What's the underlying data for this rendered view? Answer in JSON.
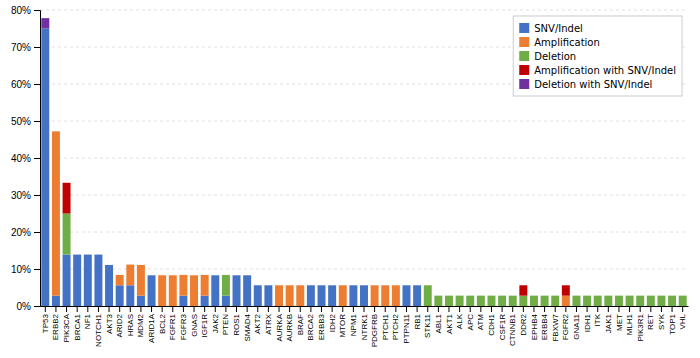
{
  "chart_data": {
    "type": "bar",
    "stacked": true,
    "categories": [
      "TP53",
      "ERBB2",
      "PIK3CA",
      "BRCA1",
      "NF1",
      "NOTCH1",
      "AKT3",
      "ARID2",
      "HRAS",
      "MDM2",
      "ARID1A",
      "BCL2",
      "FGFR1",
      "FGFR3",
      "GNAS",
      "IGF1R",
      "JAK2",
      "PTEN",
      "ROS1",
      "SMAD4",
      "AKT2",
      "ATRX",
      "AURKA",
      "AURKB",
      "BRAF",
      "BRCA2",
      "ERBB3",
      "IDH2",
      "MTOR",
      "NPM1",
      "NTRK1",
      "PDGFRB",
      "PTCH1",
      "PTCH2",
      "PTPN11",
      "RB1",
      "STK11",
      "ABL1",
      "AKT1",
      "ALK",
      "APC",
      "ATM",
      "CDH1",
      "CSF1R",
      "CTNNB1",
      "DDR2",
      "EPHB4",
      "ERBB4",
      "FBXW7",
      "FGFR2",
      "GNA11",
      "IDH1",
      "ITK",
      "JAK1",
      "MET",
      "MLH1",
      "PIK3R1",
      "RET",
      "SYK",
      "TOP1",
      "VHL"
    ],
    "series": [
      {
        "name": "SNV/Indel",
        "color": "#4472C4",
        "values": [
          75,
          2.8,
          13.9,
          13.9,
          13.9,
          13.9,
          11.1,
          5.6,
          5.6,
          2.8,
          8.3,
          0,
          0,
          2.8,
          0,
          2.8,
          8.3,
          2.8,
          8.3,
          8.3,
          5.6,
          5.6,
          0,
          0,
          0,
          5.6,
          5.6,
          5.6,
          0,
          5.6,
          5.6,
          0,
          0,
          0,
          5.6,
          5.6,
          0,
          0,
          0,
          0,
          0,
          0,
          0,
          0,
          0,
          0,
          0,
          0,
          0,
          0,
          0,
          0,
          0,
          0,
          0,
          0,
          0,
          0,
          0,
          0,
          0
        ]
      },
      {
        "name": "Amplification",
        "color": "#ED7D31",
        "values": [
          0,
          44.4,
          0,
          0,
          0,
          0,
          0,
          2.8,
          5.6,
          8.3,
          0,
          8.3,
          8.3,
          5.6,
          8.3,
          5.6,
          0,
          0,
          0,
          0,
          0,
          0,
          5.6,
          5.6,
          5.6,
          0,
          0,
          0,
          5.6,
          0,
          0,
          5.6,
          5.6,
          5.6,
          0,
          0,
          0,
          0,
          0,
          0,
          0,
          0,
          0,
          0,
          0,
          0,
          0,
          0,
          0,
          2.8,
          0,
          0,
          0,
          0,
          0,
          0,
          0,
          0,
          0,
          0,
          0
        ]
      },
      {
        "name": "Deletion",
        "color": "#70AD47",
        "values": [
          0,
          0,
          11.1,
          0,
          0,
          0,
          0,
          0,
          0,
          0,
          0,
          0,
          0,
          0,
          0,
          0,
          0,
          5.6,
          0,
          0,
          0,
          0,
          0,
          0,
          0,
          0,
          0,
          0,
          0,
          0,
          0,
          0,
          0,
          0,
          0,
          0,
          5.6,
          2.8,
          2.8,
          2.8,
          2.8,
          2.8,
          2.8,
          2.8,
          2.8,
          2.8,
          2.8,
          2.8,
          2.8,
          0,
          2.8,
          2.8,
          2.8,
          2.8,
          2.8,
          2.8,
          2.8,
          2.8,
          2.8,
          2.8,
          2.8
        ]
      },
      {
        "name": "Amplification with SNV/Indel",
        "color": "#C00000",
        "values": [
          0,
          0,
          8.3,
          0,
          0,
          0,
          0,
          0,
          0,
          0,
          0,
          0,
          0,
          0,
          0,
          0,
          0,
          0,
          0,
          0,
          0,
          0,
          0,
          0,
          0,
          0,
          0,
          0,
          0,
          0,
          0,
          0,
          0,
          0,
          0,
          0,
          0,
          0,
          0,
          0,
          0,
          0,
          0,
          0,
          0,
          2.8,
          0,
          0,
          0,
          2.8,
          0,
          0,
          0,
          0,
          0,
          0,
          0,
          0,
          0,
          0,
          0
        ]
      },
      {
        "name": "Deletion with SNV/Indel",
        "color": "#7030A0",
        "values": [
          2.8,
          0,
          0,
          0,
          0,
          0,
          0,
          0,
          0,
          0,
          0,
          0,
          0,
          0,
          0,
          0,
          0,
          0,
          0,
          0,
          0,
          0,
          0,
          0,
          0,
          0,
          0,
          0,
          0,
          0,
          0,
          0,
          0,
          0,
          0,
          0,
          0,
          0,
          0,
          0,
          0,
          0,
          0,
          0,
          0,
          0,
          0,
          0,
          0,
          0,
          0,
          0,
          0,
          0,
          0,
          0,
          0,
          0,
          0,
          0,
          0
        ]
      }
    ],
    "ylim": [
      0,
      80
    ],
    "yticks": [
      {
        "value": 0,
        "label": "0%"
      },
      {
        "value": 10,
        "label": "10%"
      },
      {
        "value": 20,
        "label": "20%"
      },
      {
        "value": 30,
        "label": "30%"
      },
      {
        "value": 40,
        "label": "40%"
      },
      {
        "value": 50,
        "label": "50%"
      },
      {
        "value": 60,
        "label": "60%"
      },
      {
        "value": 70,
        "label": "70%"
      },
      {
        "value": 80,
        "label": "80%"
      }
    ],
    "grid": true,
    "legend": "upper right"
  }
}
